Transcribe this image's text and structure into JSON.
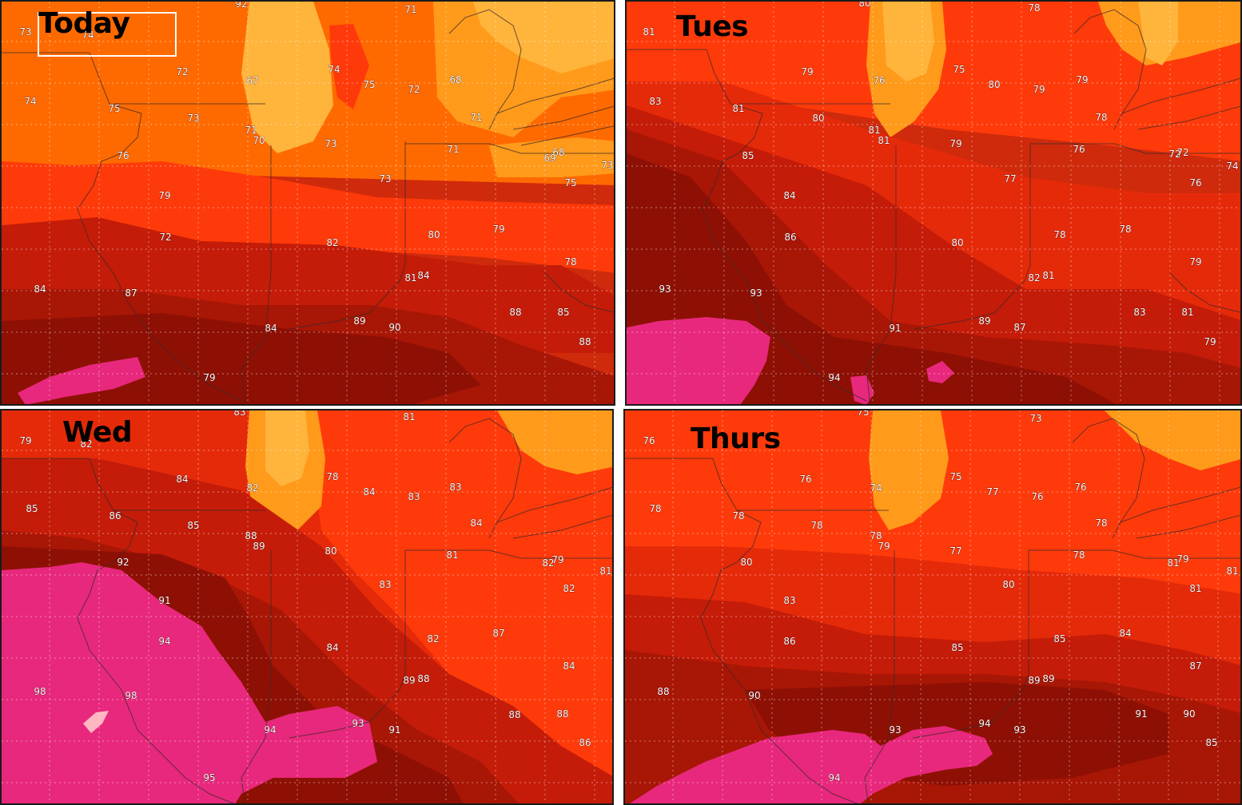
{
  "map": {
    "palette": {
      "pale_orange": "#ffb43c",
      "amber": "#ff9a1a",
      "orange": "#ff6a00",
      "red_orange": "#ff3a0a",
      "red": "#e52a0a",
      "dark_red": "#c41c08",
      "deep_red": "#a81606",
      "maroon": "#8e1004",
      "magenta": "#e8287c",
      "pink": "#ffb6c1"
    },
    "panels": [
      {
        "id": "today",
        "title": "Today",
        "temps": [
          "73",
          "74",
          "71",
          "72",
          "67",
          "74",
          "75",
          "72",
          "68",
          "74",
          "75",
          "73",
          "71",
          "70",
          "73",
          "71",
          "71",
          "76",
          "68",
          "69",
          "73",
          "79",
          "75",
          "72",
          "82",
          "80",
          "79",
          "78",
          "81",
          "84",
          "84",
          "87",
          "88",
          "85",
          "84",
          "89",
          "90",
          "88",
          "79",
          "92",
          "73"
        ]
      },
      {
        "id": "tues",
        "title": "Tues",
        "temps": [
          "81",
          "80",
          "78",
          "79",
          "76",
          "75",
          "80",
          "79",
          "79",
          "83",
          "81",
          "80",
          "81",
          "81",
          "79",
          "78",
          "76",
          "72",
          "72",
          "74",
          "85",
          "77",
          "76",
          "84",
          "86",
          "80",
          "78",
          "78",
          "79",
          "93",
          "93",
          "82",
          "81",
          "83",
          "81",
          "91",
          "89",
          "87",
          "79",
          "94"
        ]
      },
      {
        "id": "wed",
        "title": "Wed",
        "temps": [
          "79",
          "82",
          "83",
          "81",
          "84",
          "82",
          "78",
          "84",
          "83",
          "83",
          "85",
          "86",
          "85",
          "88",
          "89",
          "80",
          "84",
          "81",
          "82",
          "79",
          "81",
          "92",
          "83",
          "82",
          "91",
          "94",
          "84",
          "82",
          "87",
          "84",
          "98",
          "98",
          "89",
          "88",
          "88",
          "88",
          "94",
          "93",
          "91",
          "86",
          "95"
        ]
      },
      {
        "id": "thurs",
        "title": "Thurs",
        "temps": [
          "76",
          "75",
          "73",
          "76",
          "74",
          "75",
          "77",
          "76",
          "76",
          "78",
          "78",
          "78",
          "78",
          "79",
          "77",
          "78",
          "78",
          "81",
          "79",
          "81",
          "80",
          "80",
          "81",
          "83",
          "86",
          "85",
          "85",
          "84",
          "87",
          "88",
          "90",
          "89",
          "89",
          "93",
          "94",
          "93",
          "91",
          "90",
          "85",
          "94"
        ]
      }
    ]
  }
}
